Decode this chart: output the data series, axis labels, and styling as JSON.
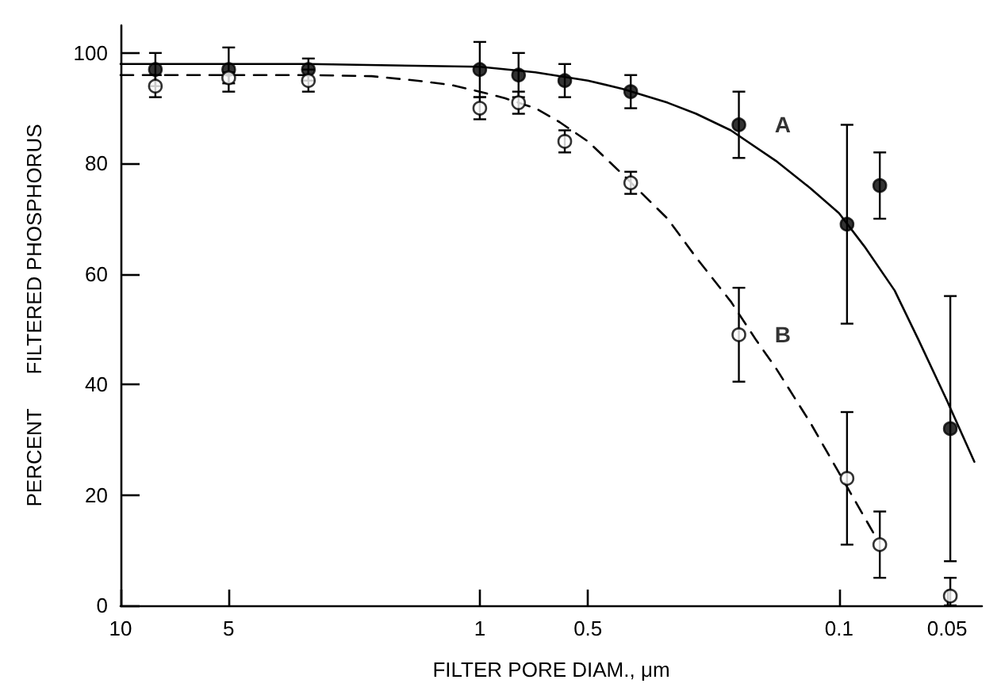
{
  "chart_data": {
    "type": "scatter",
    "xlabel": "FILTER PORE DIAM., μm",
    "ylabel": "PERCENT      FILTERED PHOSPHORUS",
    "log": "x",
    "xlim": [
      10,
      0.04
    ],
    "xticks": [
      10,
      5,
      1,
      0.5,
      0.1,
      0.05
    ],
    "ylim": [
      0,
      105
    ],
    "yticks": [
      0,
      20,
      40,
      60,
      80,
      100
    ],
    "grid": false,
    "legend": false,
    "marker": "circle",
    "series": [
      {
        "name": "A",
        "color": "#000000",
        "x": [
          8,
          5,
          3,
          1,
          0.78,
          0.58,
          0.38,
          0.19,
          0.095,
          0.077,
          0.049
        ],
        "values": [
          97,
          97,
          97,
          97,
          96,
          95,
          93,
          87,
          69,
          76,
          32
        ],
        "errors": [
          3,
          4,
          2,
          5,
          4,
          3,
          3,
          6,
          18,
          6,
          24
        ]
      },
      {
        "name": "B",
        "color": "#000000",
        "marker": "circle",
        "x": [
          8,
          5,
          3,
          1,
          0.78,
          0.58,
          0.38,
          0.19,
          0.095,
          0.077,
          0.049
        ],
        "values": [
          94,
          95.5,
          95,
          90,
          91,
          84,
          76.5,
          49,
          23,
          11,
          1.7
        ],
        "errors": [
          2,
          1,
          2,
          2,
          2,
          2,
          2,
          8.5,
          12,
          6,
          [
            0,
            5
          ]
        ]
      },
      {
        "type": "line",
        "color": "#000000",
        "line_style": "solid",
        "marker": "none",
        "x": [
          10,
          3,
          1,
          0.7,
          0.5,
          0.4,
          0.3,
          0.25,
          0.2,
          0.15,
          0.12,
          0.1,
          0.085,
          0.07,
          0.06,
          0.05,
          0.042
        ],
        "values": [
          98,
          98,
          97.5,
          96.5,
          95,
          93.5,
          91,
          89,
          86,
          80.5,
          75.5,
          71,
          65,
          57,
          48,
          37,
          26
        ]
      },
      {
        "type": "line",
        "color": "#000000",
        "line_style": "dashed",
        "marker": "none",
        "x": [
          10,
          3,
          2,
          1.5,
          1.2,
          1,
          0.85,
          0.7,
          0.6,
          0.5,
          0.4,
          0.3,
          0.25,
          0.2,
          0.17,
          0.15,
          0.12,
          0.1,
          0.08
        ],
        "values": [
          96,
          96,
          95.8,
          95,
          94.2,
          93,
          91.8,
          90,
          87.5,
          84,
          78,
          70,
          63,
          55,
          48,
          43,
          33,
          24,
          13
        ]
      }
    ]
  }
}
